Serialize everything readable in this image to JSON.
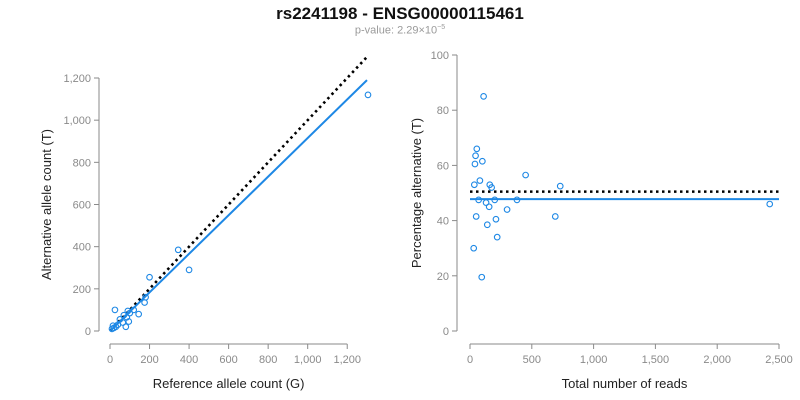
{
  "title": "rs2241198 - ENSG00000115461",
  "subtitle": {
    "prefix": "p-value: 2.29×10",
    "exponent": "−5"
  },
  "colors": {
    "points": "#1e88e5",
    "fit": "#1e88e5",
    "reference": "#000000",
    "axis": "#8a8a8a"
  },
  "chart_data": [
    {
      "type": "scatter",
      "xlabel": "Reference allele count (G)",
      "ylabel": "Alternative allele count (T)",
      "xlim": [
        0,
        1300
      ],
      "ylim": [
        0,
        1200
      ],
      "xticks": [
        0,
        200,
        400,
        600,
        800,
        1000,
        1200
      ],
      "yticks": [
        0,
        200,
        400,
        600,
        800,
        1000,
        1200
      ],
      "xtick_labels": [
        "0",
        "200",
        "400",
        "600",
        "800",
        "1,000",
        "1,200"
      ],
      "ytick_labels": [
        "0",
        "200",
        "400",
        "600",
        "800",
        "1,000",
        "1,200"
      ],
      "points": [
        {
          "x": 1305,
          "y": 1120
        },
        {
          "x": 400,
          "y": 290
        },
        {
          "x": 345,
          "y": 385
        },
        {
          "x": 200,
          "y": 255
        },
        {
          "x": 180,
          "y": 160
        },
        {
          "x": 175,
          "y": 135
        },
        {
          "x": 145,
          "y": 80
        },
        {
          "x": 120,
          "y": 100
        },
        {
          "x": 100,
          "y": 85
        },
        {
          "x": 95,
          "y": 45
        },
        {
          "x": 90,
          "y": 95
        },
        {
          "x": 85,
          "y": 65
        },
        {
          "x": 80,
          "y": 20
        },
        {
          "x": 70,
          "y": 75
        },
        {
          "x": 65,
          "y": 40
        },
        {
          "x": 50,
          "y": 55
        },
        {
          "x": 40,
          "y": 30
        },
        {
          "x": 30,
          "y": 20
        },
        {
          "x": 25,
          "y": 100
        },
        {
          "x": 20,
          "y": 15
        },
        {
          "x": 15,
          "y": 25
        },
        {
          "x": 10,
          "y": 10
        }
      ],
      "fit_line": {
        "x": [
          0,
          1300
        ],
        "y": [
          0,
          1190
        ]
      },
      "reference_line": {
        "x": [
          0,
          1300
        ],
        "y": [
          0,
          1300
        ]
      }
    },
    {
      "type": "scatter",
      "xlabel": "Total number of reads",
      "ylabel": "Percentage alternative (T)",
      "xlim": [
        0,
        2500
      ],
      "ylim": [
        0,
        100
      ],
      "xticks": [
        0,
        500,
        1000,
        1500,
        2000,
        2500
      ],
      "yticks": [
        0,
        20,
        40,
        60,
        80,
        100
      ],
      "xtick_labels": [
        "0",
        "500",
        "1,000",
        "1,500",
        "2,000",
        "2,500"
      ],
      "ytick_labels": [
        "0",
        "20",
        "40",
        "60",
        "80",
        "100"
      ],
      "points": [
        {
          "x": 2425,
          "y": 46
        },
        {
          "x": 730,
          "y": 52.5
        },
        {
          "x": 690,
          "y": 41.5
        },
        {
          "x": 450,
          "y": 56.5
        },
        {
          "x": 380,
          "y": 47.5
        },
        {
          "x": 300,
          "y": 44
        },
        {
          "x": 220,
          "y": 34
        },
        {
          "x": 210,
          "y": 40.5
        },
        {
          "x": 200,
          "y": 47.5
        },
        {
          "x": 175,
          "y": 52
        },
        {
          "x": 160,
          "y": 53
        },
        {
          "x": 155,
          "y": 45
        },
        {
          "x": 140,
          "y": 38.5
        },
        {
          "x": 130,
          "y": 46.5
        },
        {
          "x": 110,
          "y": 85
        },
        {
          "x": 100,
          "y": 61.5
        },
        {
          "x": 95,
          "y": 19.5
        },
        {
          "x": 80,
          "y": 54.5
        },
        {
          "x": 70,
          "y": 47.5
        },
        {
          "x": 55,
          "y": 66
        },
        {
          "x": 45,
          "y": 63.5
        },
        {
          "x": 40,
          "y": 60.5
        },
        {
          "x": 35,
          "y": 53
        },
        {
          "x": 50,
          "y": 41.5
        },
        {
          "x": 30,
          "y": 30
        }
      ],
      "fit_line": {
        "x": [
          0,
          2500
        ],
        "y": [
          47.8,
          47.8
        ]
      },
      "reference_line": {
        "x": [
          0,
          2500
        ],
        "y": [
          50.5,
          50.5
        ]
      }
    }
  ]
}
